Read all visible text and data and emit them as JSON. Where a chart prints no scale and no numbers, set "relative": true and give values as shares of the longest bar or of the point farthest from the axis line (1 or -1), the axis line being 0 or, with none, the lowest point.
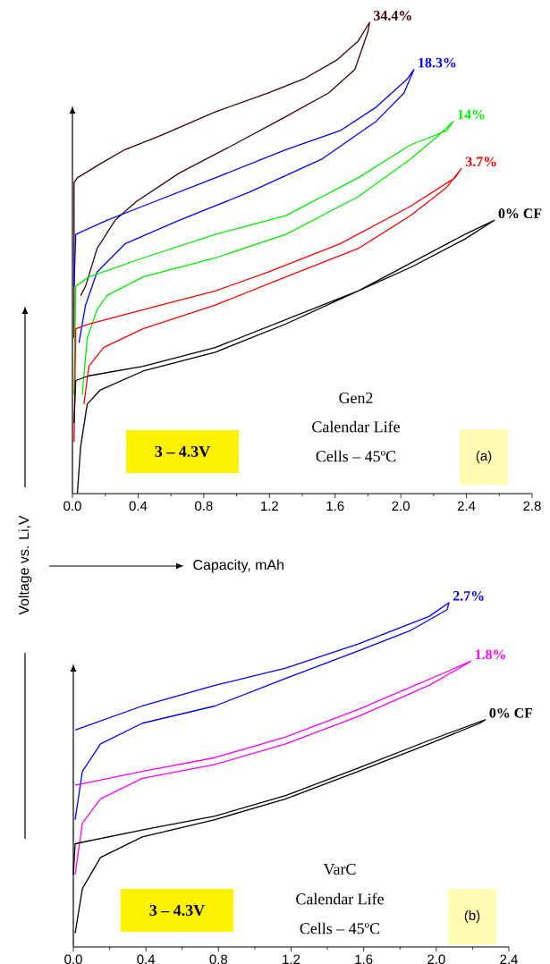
{
  "chart_data": [
    {
      "type": "line",
      "relative": true,
      "xlabel": "Capacity, mAh",
      "ylabel": "Voltage vs. Li,V",
      "xlim": [
        0,
        2.8
      ],
      "xticks": [
        {
          "value": 0,
          "label": "0.0"
        },
        {
          "value": 0.4,
          "label": "0.4"
        },
        {
          "value": 0.8,
          "label": "0.8"
        },
        {
          "value": 1.2,
          "label": "1.2"
        },
        {
          "value": 1.6,
          "label": "1.6"
        },
        {
          "value": 2.0,
          "label": "2.0"
        },
        {
          "value": 2.4,
          "label": "2.4"
        },
        {
          "value": 2.8,
          "label": "2.8"
        }
      ],
      "marker": "none",
      "series": [
        {
          "name": "34.4%",
          "color": "#400000",
          "x": [
            0.05,
            0.08,
            0.15,
            0.26,
            0.39,
            0.65,
            0.98,
            1.3,
            1.56,
            1.72,
            1.8,
            1.81,
            1.74,
            1.61,
            1.41,
            1.19,
            0.87,
            0.54,
            0.32,
            0.17,
            0.03,
            0.01,
            0.01
          ],
          "values": [
            0.42,
            0.44,
            0.52,
            0.58,
            0.62,
            0.68,
            0.74,
            0.8,
            0.85,
            0.9,
            0.98,
            1.0,
            0.96,
            0.92,
            0.88,
            0.85,
            0.81,
            0.76,
            0.73,
            0.7,
            0.67,
            0.66,
            0.33
          ]
        },
        {
          "name": "18.3%",
          "color": "#0000ff",
          "x": [
            0.04,
            0.08,
            0.15,
            0.32,
            0.65,
            1.08,
            1.52,
            1.85,
            2.02,
            2.08,
            2.04,
            1.85,
            1.63,
            1.3,
            0.87,
            0.43,
            0.21,
            0.02,
            0.01
          ],
          "values": [
            0.32,
            0.4,
            0.47,
            0.53,
            0.58,
            0.64,
            0.71,
            0.79,
            0.85,
            0.9,
            0.88,
            0.82,
            0.77,
            0.73,
            0.67,
            0.61,
            0.58,
            0.55,
            0.44
          ]
        },
        {
          "name": "14%",
          "color": "#00ee00",
          "x": [
            0.06,
            0.09,
            0.15,
            0.21,
            0.43,
            0.87,
            1.3,
            1.74,
            2.06,
            2.23,
            2.32,
            2.28,
            2.06,
            1.74,
            1.3,
            0.87,
            0.43,
            0.1,
            0.02,
            0.01
          ],
          "values": [
            0.21,
            0.33,
            0.39,
            0.42,
            0.46,
            0.5,
            0.55,
            0.63,
            0.71,
            0.76,
            0.79,
            0.77,
            0.74,
            0.67,
            0.59,
            0.55,
            0.5,
            0.46,
            0.44,
            0.21
          ]
        },
        {
          "name": "3.7%",
          "color": "#ff0000",
          "x": [
            0.07,
            0.1,
            0.19,
            0.43,
            0.87,
            1.3,
            1.74,
            2.06,
            2.28,
            2.37,
            2.33,
            2.06,
            1.63,
            1.19,
            0.87,
            0.43,
            0.1,
            0.02,
            0.01
          ],
          "values": [
            0.19,
            0.27,
            0.31,
            0.35,
            0.4,
            0.46,
            0.52,
            0.59,
            0.65,
            0.69,
            0.67,
            0.61,
            0.53,
            0.47,
            0.43,
            0.39,
            0.36,
            0.35,
            0.11
          ]
        },
        {
          "name": "0% CF",
          "color": "#000000",
          "x": [
            0.03,
            0.05,
            0.09,
            0.17,
            0.43,
            0.87,
            1.3,
            1.74,
            2.06,
            2.39,
            2.57,
            2.39,
            1.74,
            0.87,
            0.43,
            0.1,
            0.02,
            0.01
          ],
          "values": [
            0.0,
            0.1,
            0.19,
            0.22,
            0.26,
            0.3,
            0.36,
            0.43,
            0.48,
            0.54,
            0.58,
            0.55,
            0.43,
            0.31,
            0.27,
            0.25,
            0.24,
            0.15
          ]
        }
      ],
      "annotations": [
        "3 – 4.3V",
        "Gen2",
        "Calendar Life",
        "Cells – 45ºC",
        "(a)"
      ]
    },
    {
      "type": "line",
      "relative": true,
      "xlim": [
        0,
        2.4
      ],
      "xticks": [
        {
          "value": 0,
          "label": "0.0"
        },
        {
          "value": 0.4,
          "label": "0.4"
        },
        {
          "value": 0.8,
          "label": "0.8"
        },
        {
          "value": 1.2,
          "label": "1.2"
        },
        {
          "value": 1.6,
          "label": "1.6"
        },
        {
          "value": 2.0,
          "label": "2.0"
        },
        {
          "value": 2.4,
          "label": "2.4"
        }
      ],
      "marker": "none",
      "series": [
        {
          "name": "2.7%",
          "color": "#0000ff",
          "x": [
            0.01,
            0.05,
            0.15,
            0.38,
            0.78,
            1.17,
            1.57,
            1.86,
            2.06,
            2.07,
            1.96,
            1.57,
            1.17,
            0.78,
            0.38,
            0.01
          ],
          "values": [
            0.37,
            0.51,
            0.59,
            0.65,
            0.7,
            0.78,
            0.86,
            0.92,
            0.98,
            1.0,
            0.96,
            0.88,
            0.81,
            0.76,
            0.7,
            0.63
          ]
        },
        {
          "name": "1.8%",
          "color": "#ff00ff",
          "x": [
            0.01,
            0.05,
            0.15,
            0.38,
            0.78,
            1.17,
            1.57,
            1.96,
            2.16,
            2.19,
            2.06,
            1.57,
            1.17,
            0.78,
            0.38,
            0.01
          ],
          "values": [
            0.21,
            0.36,
            0.43,
            0.49,
            0.53,
            0.59,
            0.67,
            0.76,
            0.82,
            0.83,
            0.8,
            0.69,
            0.61,
            0.55,
            0.51,
            0.47
          ]
        },
        {
          "name": "0% CF",
          "color": "#000000",
          "x": [
            0.01,
            0.05,
            0.15,
            0.38,
            0.78,
            1.17,
            1.57,
            1.96,
            2.24,
            2.27,
            1.96,
            1.57,
            1.17,
            0.78,
            0.38,
            0.01,
            0.0
          ],
          "values": [
            0.04,
            0.17,
            0.26,
            0.32,
            0.37,
            0.43,
            0.51,
            0.59,
            0.65,
            0.66,
            0.6,
            0.52,
            0.44,
            0.38,
            0.34,
            0.3,
            0.21
          ]
        }
      ],
      "annotations": [
        "3 – 4.3V",
        "VarC",
        "Calendar Life",
        "Cells – 45ºC",
        "(b)"
      ]
    }
  ]
}
